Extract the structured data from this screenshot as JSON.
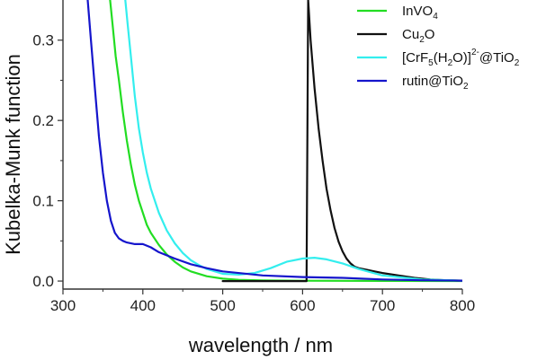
{
  "chart_data": {
    "type": "line",
    "title": "",
    "xlabel": "wavelength / nm",
    "ylabel": "Kubelka-Munk function",
    "xlim": [
      300,
      800
    ],
    "ylim": [
      -0.01,
      0.35
    ],
    "xticks": [
      300,
      400,
      500,
      600,
      700,
      800
    ],
    "yticks": [
      0.0,
      0.1,
      0.2,
      0.3
    ],
    "xtick_labels": [
      "300",
      "400",
      "500",
      "600",
      "700",
      "800"
    ],
    "ytick_labels": [
      "0.0",
      "0.1",
      "0.2",
      "0.3"
    ],
    "grid": false,
    "legend_position": "top-right",
    "series": [
      {
        "name": "InVO4",
        "legend": {
          "base": "InVO",
          "sub": "4",
          "sup": "",
          "tail": ""
        },
        "color": "#22dd22",
        "x": [
          359,
          362,
          366,
          370,
          375,
          380,
          385,
          390,
          395,
          400,
          405,
          410,
          420,
          430,
          440,
          450,
          460,
          480,
          500,
          520,
          550,
          600,
          700,
          800
        ],
        "y": [
          0.35,
          0.32,
          0.28,
          0.25,
          0.21,
          0.175,
          0.145,
          0.12,
          0.1,
          0.085,
          0.07,
          0.06,
          0.045,
          0.033,
          0.024,
          0.017,
          0.012,
          0.006,
          0.003,
          0.0015,
          0.0008,
          0.0004,
          0.0002,
          0.0001
        ]
      },
      {
        "name": "Cu2O",
        "legend": {
          "base": "Cu",
          "sub": "2",
          "sup": "",
          "tail": "O"
        },
        "color": "#111111",
        "x": [
          500,
          560,
          590,
          605,
          607,
          610,
          615,
          620,
          625,
          630,
          635,
          640,
          645,
          650,
          655,
          660,
          665,
          670,
          680,
          690,
          700,
          720,
          740,
          760,
          780,
          800
        ],
        "y": [
          0.0,
          0.0,
          0.0,
          0.0,
          0.35,
          0.3,
          0.24,
          0.19,
          0.15,
          0.115,
          0.088,
          0.066,
          0.049,
          0.037,
          0.028,
          0.022,
          0.018,
          0.016,
          0.014,
          0.012,
          0.01,
          0.007,
          0.004,
          0.002,
          0.001,
          0.0005
        ]
      },
      {
        "name": "[CrF5(H2O)]2-@TiO2",
        "legend": {
          "base": "[CrF",
          "sub": "5",
          "sup": "2-",
          "tail": "(H2O)]@TiO2"
        },
        "color": "#33eeee",
        "x": [
          378,
          381,
          385,
          390,
          395,
          400,
          405,
          410,
          420,
          430,
          440,
          450,
          460,
          470,
          480,
          500,
          520,
          540,
          560,
          580,
          600,
          615,
          630,
          650,
          670,
          700,
          750,
          800
        ],
        "y": [
          0.35,
          0.32,
          0.28,
          0.23,
          0.19,
          0.16,
          0.135,
          0.115,
          0.085,
          0.063,
          0.047,
          0.035,
          0.026,
          0.02,
          0.015,
          0.009,
          0.008,
          0.01,
          0.016,
          0.024,
          0.028,
          0.029,
          0.027,
          0.022,
          0.015,
          0.007,
          0.002,
          0.0005
        ]
      },
      {
        "name": "rutin@TiO2",
        "legend": {
          "base": "rutin@TiO",
          "sub": "2",
          "sup": "",
          "tail": ""
        },
        "color": "#1515cc",
        "x": [
          331,
          335,
          340,
          345,
          350,
          355,
          360,
          365,
          370,
          375,
          380,
          390,
          400,
          410,
          420,
          440,
          460,
          480,
          500,
          550,
          600,
          650,
          700,
          750,
          800
        ],
        "y": [
          0.35,
          0.3,
          0.24,
          0.18,
          0.135,
          0.1,
          0.075,
          0.06,
          0.053,
          0.05,
          0.048,
          0.046,
          0.046,
          0.042,
          0.036,
          0.028,
          0.021,
          0.016,
          0.012,
          0.007,
          0.005,
          0.004,
          0.002,
          0.001,
          0.0005
        ]
      }
    ]
  }
}
